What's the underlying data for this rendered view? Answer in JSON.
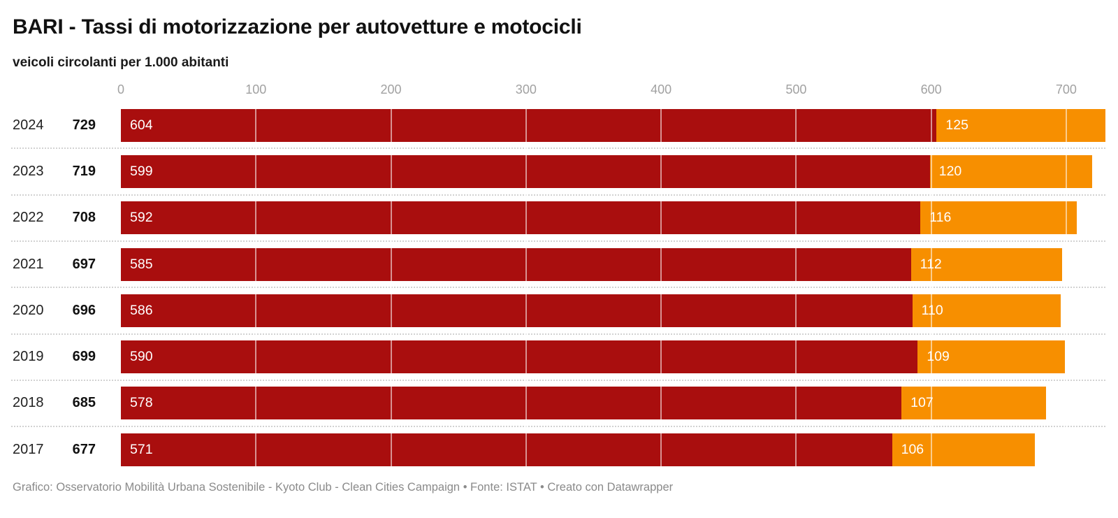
{
  "header": {
    "title": "BARI - Tassi di motorizzazione per autovetture e motocicli",
    "subtitle": "veicoli circolanti per 1.000 abitanti"
  },
  "chart_data": {
    "type": "bar",
    "orientation": "horizontal",
    "stacked": true,
    "title": "BARI - Tassi di motorizzazione per autovetture e motocicli",
    "subtitle": "veicoli circolanti per 1.000 abitanti",
    "categories": [
      "2024",
      "2023",
      "2022",
      "2021",
      "2020",
      "2019",
      "2018",
      "2017"
    ],
    "totals": [
      729,
      719,
      708,
      697,
      696,
      699,
      685,
      677
    ],
    "series": [
      {
        "name": "autovetture",
        "color": "#a90e0e",
        "values": [
          604,
          599,
          592,
          585,
          586,
          590,
          578,
          571
        ]
      },
      {
        "name": "motocicli",
        "color": "#f78f00",
        "values": [
          125,
          120,
          116,
          112,
          110,
          109,
          107,
          106
        ]
      }
    ],
    "x_ticks": [
      0,
      100,
      200,
      300,
      400,
      500,
      600,
      700
    ],
    "xlim": [
      0,
      729
    ],
    "grid": true,
    "legend_position": "none"
  },
  "footer": {
    "text": "Grafico: Osservatorio Mobilità Urbana Sostenibile - Kyoto Club - Clean Cities Campaign • Fonte: ISTAT • Creato con Datawrapper"
  }
}
